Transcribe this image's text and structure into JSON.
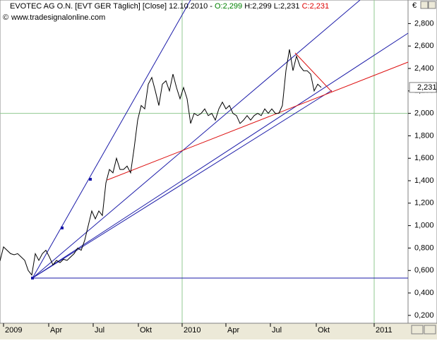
{
  "chart_data": {
    "type": "line",
    "title": "EVOTEC AG O.N. [EVT GER  Täglich] [Close] 12.10.2010 -",
    "ohlc": [
      "O:2,299",
      "H:2,299",
      "L:2,231",
      "C:2,231"
    ],
    "subtitle": "www.tradesignalonline.com",
    "y_unit": "€",
    "series": [
      {
        "name": "EVOTEC AG O.N.",
        "color": "#000000",
        "values": [
          0.685,
          0.81,
          0.78,
          0.75,
          0.74,
          0.75,
          0.72,
          0.69,
          0.6,
          0.56,
          0.75,
          0.69,
          0.75,
          0.78,
          0.72,
          0.65,
          0.69,
          0.67,
          0.7,
          0.69,
          0.72,
          0.75,
          0.8,
          0.78,
          0.87,
          1.0,
          1.13,
          1.06,
          1.13,
          1.09,
          1.38,
          1.5,
          1.47,
          1.6,
          1.5,
          1.5,
          1.53,
          1.47,
          1.69,
          1.94,
          2.07,
          2.04,
          2.26,
          2.32,
          2.2,
          2.07,
          2.26,
          2.29,
          2.2,
          2.35,
          2.23,
          2.13,
          2.23,
          2.13,
          1.91,
          2.0,
          1.98,
          2.0,
          2.04,
          1.98,
          2.0,
          1.94,
          2.04,
          2.1,
          2.04,
          2.07,
          2.0,
          1.98,
          1.91,
          1.94,
          1.98,
          1.94,
          1.98,
          2.0,
          1.98,
          2.04,
          2.0,
          2.04,
          2.0,
          2.0,
          2.07,
          2.38,
          2.57,
          2.38,
          2.51,
          2.42,
          2.38,
          2.38,
          2.35,
          2.2,
          2.26,
          2.231
        ]
      }
    ],
    "current_price": {
      "value": 2.231,
      "label": "2,231"
    },
    "xlim": [
      0,
      115.6
    ],
    "xticks": [
      {
        "value": 1,
        "label": "2009"
      },
      {
        "value": 13.8,
        "label": "Apr"
      },
      {
        "value": 26.4,
        "label": "Jul"
      },
      {
        "value": 39.2,
        "label": "Okt"
      },
      {
        "value": 51.6,
        "label": "2010"
      },
      {
        "value": 64,
        "label": "Apr"
      },
      {
        "value": 76.6,
        "label": "Jul"
      },
      {
        "value": 89.6,
        "label": "Okt"
      },
      {
        "value": 106,
        "label": "2011"
      }
    ],
    "ylim": [
      0.13,
      3.01
    ],
    "yticks": [
      {
        "value": 0.2,
        "label": "0,200"
      },
      {
        "value": 0.4,
        "label": "0,400"
      },
      {
        "value": 0.6,
        "label": "0,600"
      },
      {
        "value": 0.8,
        "label": "0,800"
      },
      {
        "value": 1,
        "label": "1,000"
      },
      {
        "value": 1.2,
        "label": "1,200"
      },
      {
        "value": 1.4,
        "label": "1,400"
      },
      {
        "value": 1.6,
        "label": "1,600"
      },
      {
        "value": 1.8,
        "label": "1,800"
      },
      {
        "value": 2,
        "label": "2,000"
      },
      {
        "value": 2.2,
        "label": "2,200"
      },
      {
        "value": 2.4,
        "label": "2,400"
      },
      {
        "value": 2.6,
        "label": "2,600"
      },
      {
        "value": 2.8,
        "label": "2,800"
      }
    ],
    "grid_x": [
      51.6,
      106
    ],
    "grid_y": [
      2
    ],
    "grid_color": "#90c890"
  }
}
